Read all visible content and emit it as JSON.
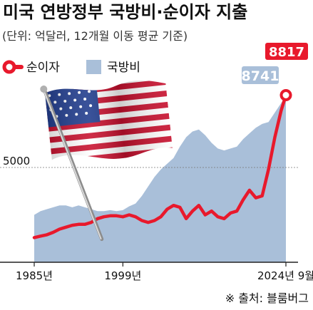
{
  "chart_data": {
    "type": "line",
    "title": "미국 연방정부 국방비·순이자 지출",
    "subtitle": "(단위: 억달러, 12개월 이동 평균 기준)",
    "x_range": [
      1985,
      2024.75
    ],
    "x_ticks": [
      {
        "value": 1985,
        "label": "1985년"
      },
      {
        "value": 1999,
        "label": "1999년"
      },
      {
        "value": 2024.75,
        "label": "2024년 9월"
      }
    ],
    "ylim": [
      0,
      9400
    ],
    "y_ticks": [
      {
        "value": 5000,
        "label": "5000"
      }
    ],
    "legend_position": "top-left",
    "series": [
      {
        "name": "순이자",
        "style": "line",
        "color": "#e8192c",
        "x": [
          1985,
          1986,
          1987,
          1988,
          1989,
          1990,
          1991,
          1992,
          1993,
          1994,
          1995,
          1996,
          1997,
          1998,
          1999,
          2000,
          2001,
          2002,
          2003,
          2004,
          2005,
          2006,
          2007,
          2008,
          2009,
          2010,
          2011,
          2012,
          2013,
          2014,
          2015,
          2016,
          2017,
          2018,
          2019,
          2020,
          2021,
          2022,
          2023,
          2024,
          2024.75
        ],
        "values": [
          1300,
          1380,
          1450,
          1580,
          1750,
          1850,
          1950,
          2000,
          2000,
          2100,
          2300,
          2400,
          2450,
          2450,
          2400,
          2500,
          2400,
          2200,
          2100,
          2200,
          2400,
          2800,
          3000,
          2900,
          2300,
          2700,
          3000,
          2500,
          2700,
          2400,
          2300,
          2600,
          2700,
          3300,
          3800,
          3400,
          3500,
          4900,
          6600,
          8000,
          8817
        ],
        "end_label": "8817"
      },
      {
        "name": "국방비",
        "style": "area",
        "color": "#a9bfd9",
        "x": [
          1985,
          1986,
          1987,
          1988,
          1989,
          1990,
          1991,
          1992,
          1993,
          1994,
          1995,
          1996,
          1997,
          1998,
          1999,
          2000,
          2001,
          2002,
          2003,
          2004,
          2005,
          2006,
          2007,
          2008,
          2009,
          2010,
          2011,
          2012,
          2013,
          2014,
          2015,
          2016,
          2017,
          2018,
          2019,
          2020,
          2021,
          2022,
          2023,
          2024,
          2024.75
        ],
        "values": [
          2500,
          2700,
          2800,
          2900,
          3000,
          3000,
          2900,
          3000,
          2900,
          2800,
          2700,
          2700,
          2750,
          2700,
          2750,
          2950,
          3100,
          3500,
          4000,
          4500,
          4900,
          5200,
          5500,
          6100,
          6600,
          6900,
          7000,
          6700,
          6300,
          6000,
          5900,
          6000,
          6100,
          6500,
          6800,
          7100,
          7300,
          7400,
          7900,
          8400,
          8741
        ],
        "end_label": "8741"
      }
    ],
    "source": "※ 출처: 블룸버그"
  }
}
